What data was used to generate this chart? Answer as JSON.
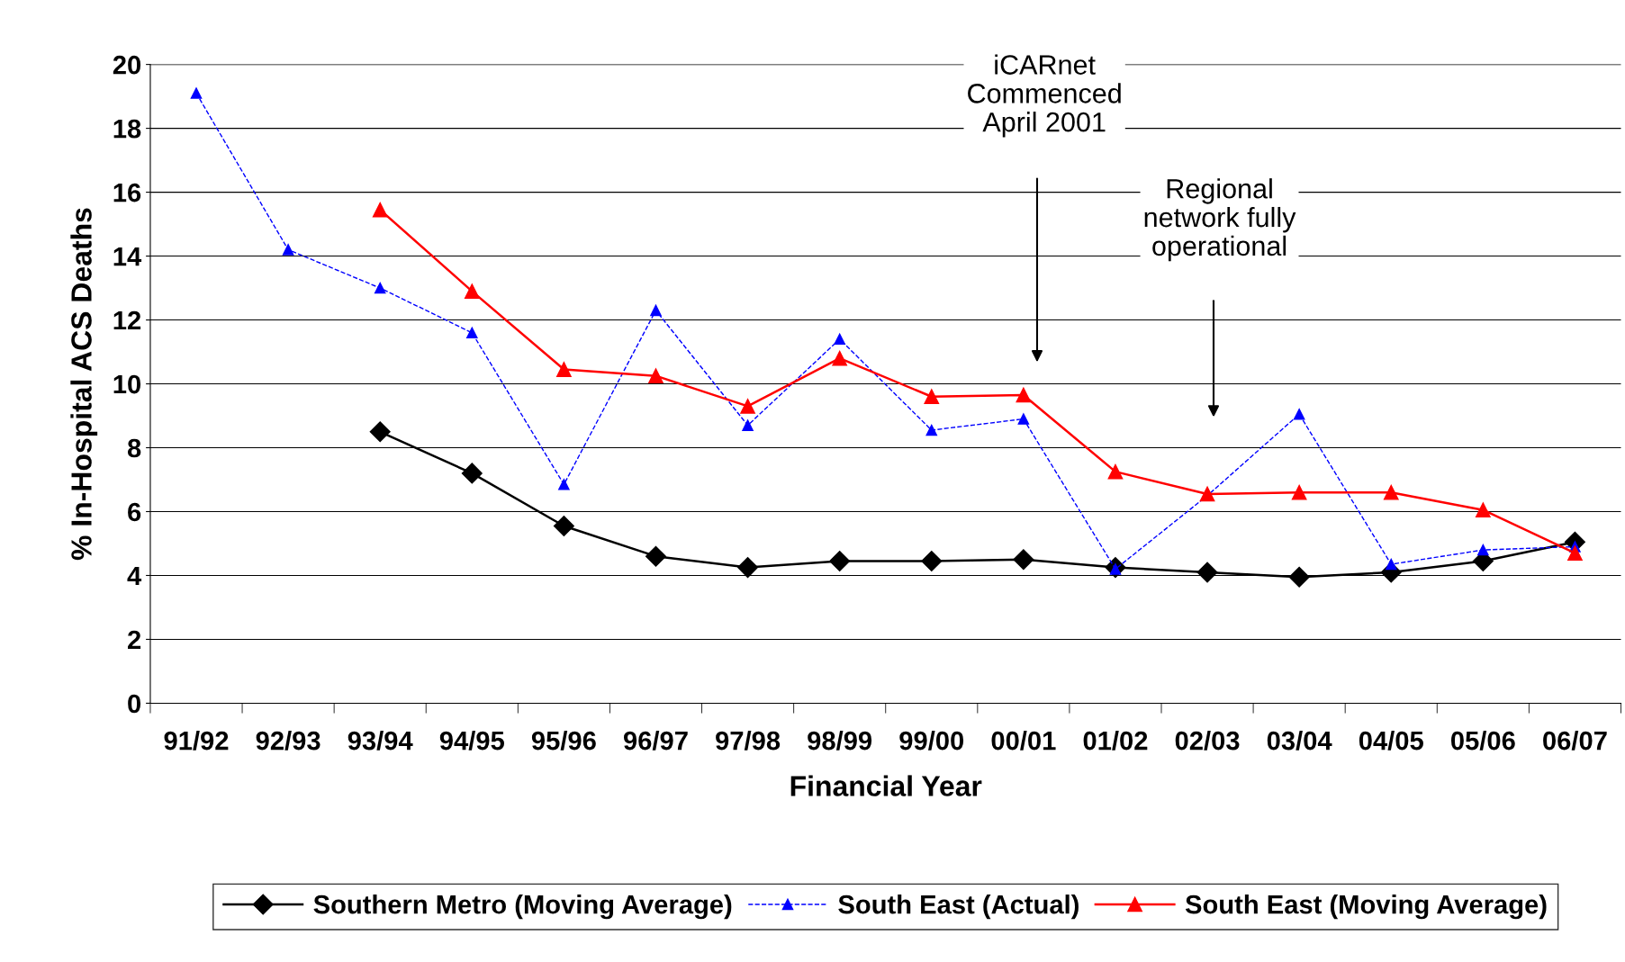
{
  "chart_data": {
    "type": "line",
    "xlabel": "Financial Year",
    "ylabel": "% In-Hospital ACS Deaths",
    "categories": [
      "91/92",
      "92/93",
      "93/94",
      "94/95",
      "95/96",
      "96/97",
      "97/98",
      "98/99",
      "99/00",
      "00/01",
      "01/02",
      "02/03",
      "03/04",
      "04/05",
      "05/06",
      "06/07"
    ],
    "series": [
      {
        "name": "Southern Metro (Moving Average)",
        "color": "#000000",
        "marker": "diamond",
        "line_style": "solid",
        "values": [
          null,
          null,
          8.5,
          7.2,
          5.55,
          4.6,
          4.25,
          4.45,
          4.45,
          4.5,
          4.25,
          4.1,
          3.95,
          4.1,
          4.45,
          5.05
        ]
      },
      {
        "name": "South East (Actual)",
        "color": "#0000ff",
        "marker": "triangle",
        "line_style": "dashed",
        "values": [
          19.1,
          14.2,
          13.0,
          11.6,
          6.85,
          12.3,
          8.7,
          11.4,
          8.55,
          8.9,
          4.2,
          6.5,
          9.05,
          4.35,
          4.8,
          4.9
        ]
      },
      {
        "name": "South East (Moving Average)",
        "color": "#ff0000",
        "marker": "triangle",
        "line_style": "solid",
        "values": [
          null,
          null,
          15.45,
          12.9,
          10.45,
          10.25,
          9.3,
          10.8,
          9.6,
          9.65,
          7.25,
          6.55,
          6.6,
          6.6,
          6.05,
          4.7
        ]
      }
    ],
    "ylim": [
      0,
      20
    ],
    "yticks": [
      0,
      2,
      4,
      6,
      8,
      10,
      12,
      14,
      16,
      18,
      20
    ],
    "grid": "y",
    "legend": "bottom",
    "annotations": [
      "iCARnet\nCommenced\nApril 2001",
      "Regional\nnetwork fully\noperational"
    ]
  }
}
